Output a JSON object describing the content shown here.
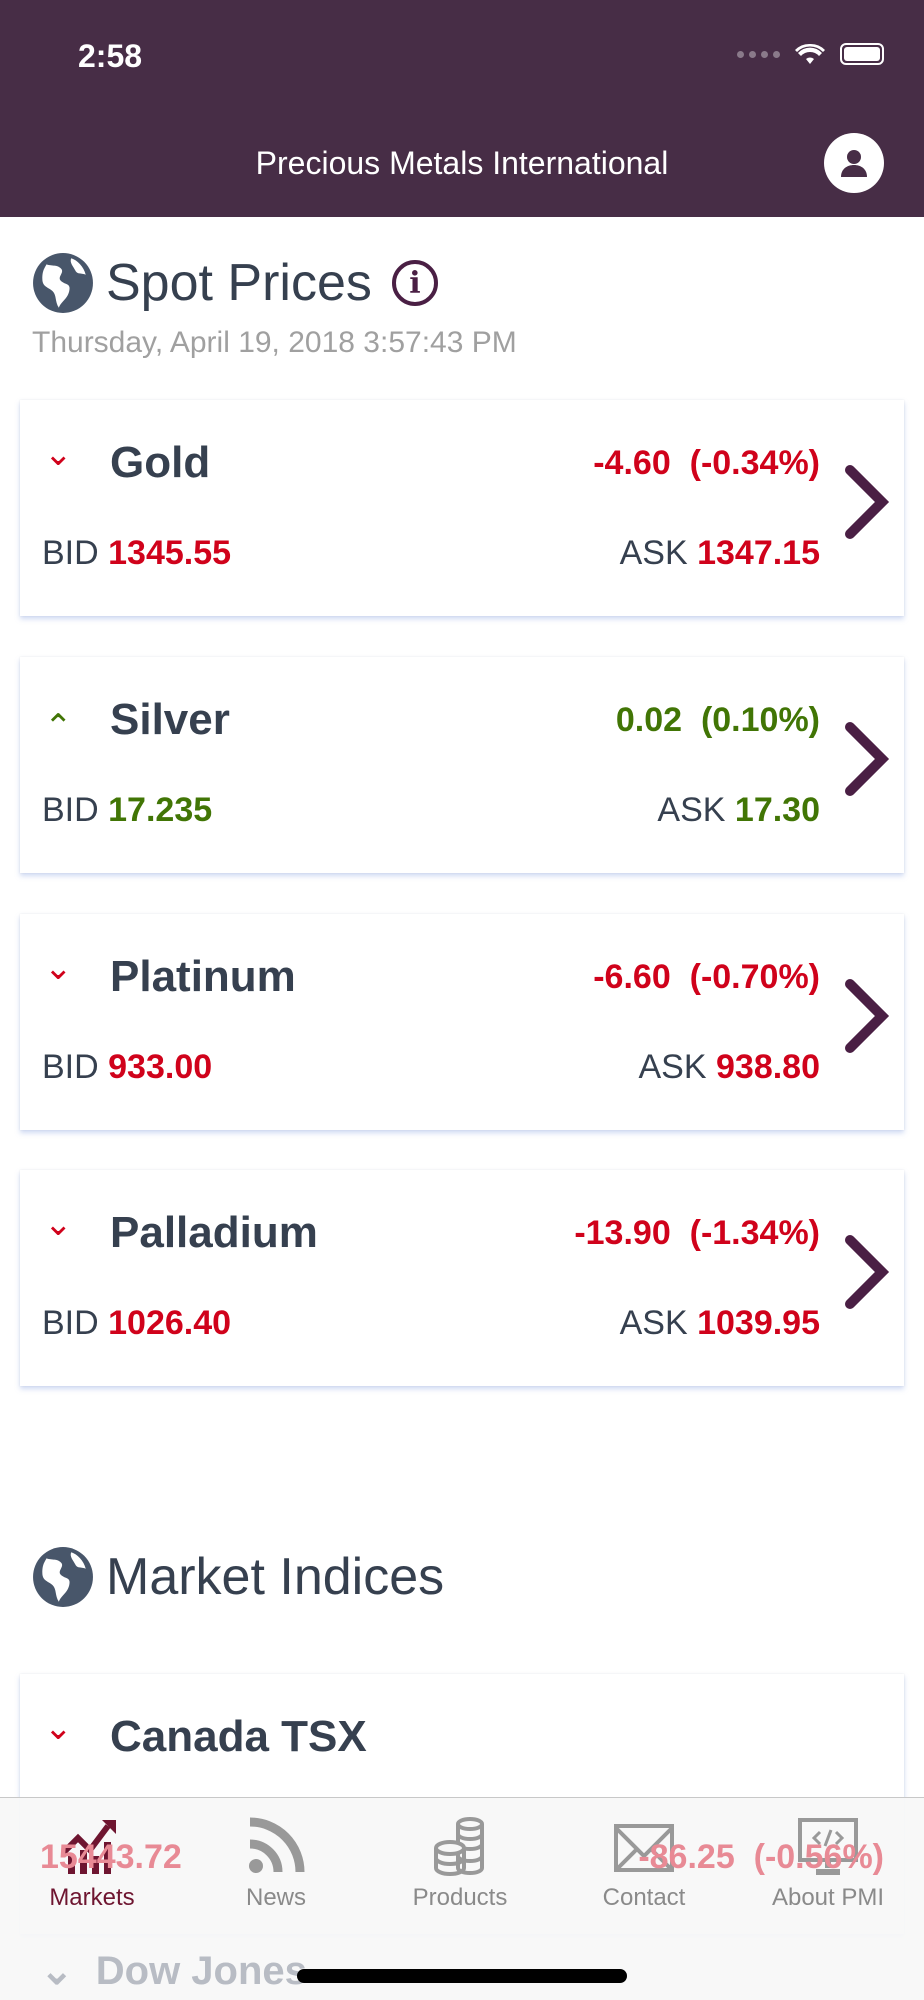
{
  "status_bar": {
    "time": "2:58"
  },
  "header": {
    "title": "Precious Metals International",
    "profile_icon": "user-icon"
  },
  "spot": {
    "title": "Spot Prices",
    "timestamp": "Thursday, April 19, 2018 3:57:43 PM",
    "items": [
      {
        "name": "Gold",
        "direction": "down",
        "change": "-4.60  (-0.34%)",
        "bid_label": "BID",
        "bid": "1345.55",
        "ask_label": "ASK",
        "ask": "1347.15"
      },
      {
        "name": "Silver",
        "direction": "up",
        "change": "0.02  (0.10%)",
        "bid_label": "BID",
        "bid": "17.235",
        "ask_label": "ASK",
        "ask": "17.30"
      },
      {
        "name": "Platinum",
        "direction": "down",
        "change": "-6.60  (-0.70%)",
        "bid_label": "BID",
        "bid": "933.00",
        "ask_label": "ASK",
        "ask": "938.80"
      },
      {
        "name": "Palladium",
        "direction": "down",
        "change": "-13.90  (-1.34%)",
        "bid_label": "BID",
        "bid": "1026.40",
        "ask_label": "ASK",
        "ask": "1039.95"
      }
    ]
  },
  "indices": {
    "title": "Market Indices",
    "items": [
      {
        "name": "Canada TSX",
        "direction": "down",
        "value": "15443.72",
        "change": "-86.25  (-0.56%)"
      },
      {
        "name": "Dow Jones"
      }
    ]
  },
  "tabs": [
    {
      "label": "Markets",
      "icon": "chart-icon",
      "active": true
    },
    {
      "label": "News",
      "icon": "rss-icon"
    },
    {
      "label": "Products",
      "icon": "coins-icon"
    },
    {
      "label": "Contact",
      "icon": "envelope-icon"
    },
    {
      "label": "About PMI",
      "icon": "monitor-code-icon"
    }
  ],
  "colors": {
    "header": "#472d46",
    "down": "#d0021b",
    "up": "#417505",
    "accent": "#4a1f44",
    "tab_active": "#6e1530"
  }
}
